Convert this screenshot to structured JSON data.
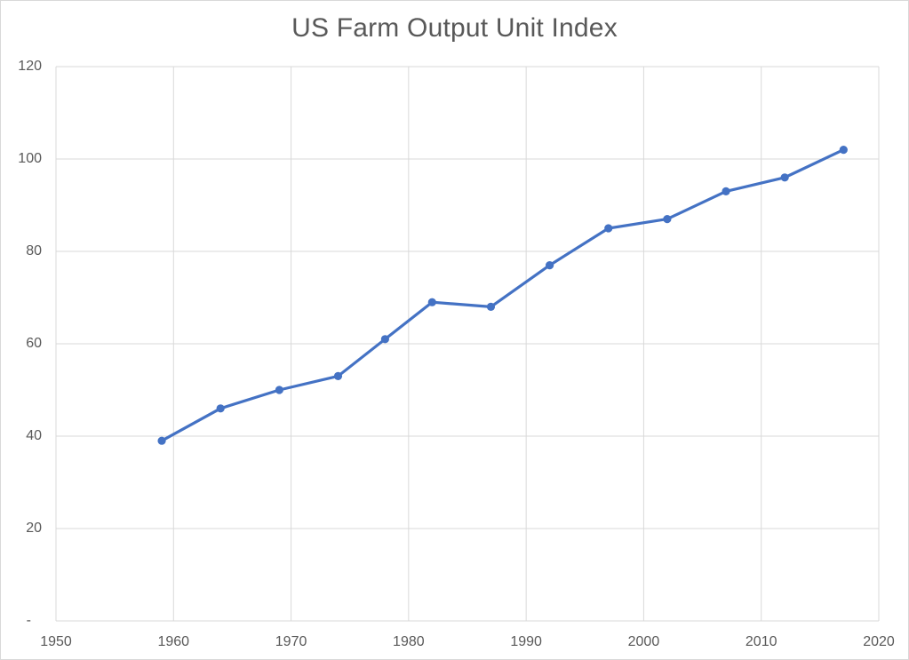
{
  "chart_data": {
    "type": "line",
    "title": "US Farm Output Unit Index",
    "x": [
      1959,
      1964,
      1969,
      1974,
      1978,
      1982,
      1987,
      1992,
      1997,
      2002,
      2007,
      2012,
      2017
    ],
    "values": [
      39,
      46,
      50,
      53,
      61,
      69,
      68,
      77,
      85,
      87,
      93,
      96,
      102
    ],
    "xlabel": "",
    "ylabel": "",
    "xlim": [
      1950,
      2020
    ],
    "ylim": [
      0,
      120
    ],
    "x_ticks": [
      1950,
      1960,
      1970,
      1980,
      1990,
      2000,
      2010,
      2020
    ],
    "x_tick_labels": [
      "1950",
      "1960",
      "1970",
      "1980",
      "1990",
      "2000",
      "2010",
      "2020"
    ],
    "y_ticks": [
      0,
      20,
      40,
      60,
      80,
      100,
      120
    ],
    "y_tick_labels": [
      "-",
      "20",
      "40",
      "60",
      "80",
      "100",
      "120"
    ],
    "grid": true,
    "legend": "none",
    "marker": "circle",
    "colors": {
      "line": "#4472C4",
      "marker": "#4472C4",
      "gridline": "#D9D9D9",
      "axis_line": "#D9D9D9",
      "text": "#595959",
      "background": "#FFFFFF",
      "chart_border": "#D9D9D9"
    }
  }
}
